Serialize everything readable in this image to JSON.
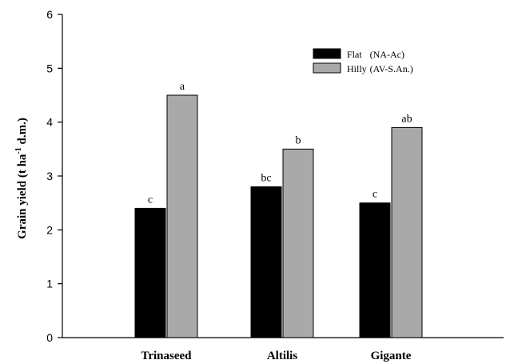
{
  "chart_data": {
    "type": "bar",
    "categories": [
      "Trinaseed",
      "Altilis",
      "Gigante"
    ],
    "series": [
      {
        "name": "Flat",
        "name_suffix": "(NA-Ac)",
        "color": "#000000",
        "values": [
          2.4,
          2.8,
          2.5
        ],
        "letters": [
          "c",
          "bc",
          "c"
        ]
      },
      {
        "name": "Hilly",
        "name_suffix": "(AV-S.An.)",
        "color": "#a9a9a9",
        "values": [
          4.5,
          3.5,
          3.9
        ],
        "letters": [
          "a",
          "b",
          "ab"
        ]
      }
    ],
    "ylabel": {
      "prefix": "Grain yield (t ha",
      "superscript": "-1",
      "suffix": " d.m.)"
    },
    "ylim": [
      0,
      6
    ],
    "yticks": [
      "0",
      "1",
      "2",
      "3",
      "4",
      "5",
      "6"
    ],
    "legend_position": "top-right",
    "grid": false
  }
}
